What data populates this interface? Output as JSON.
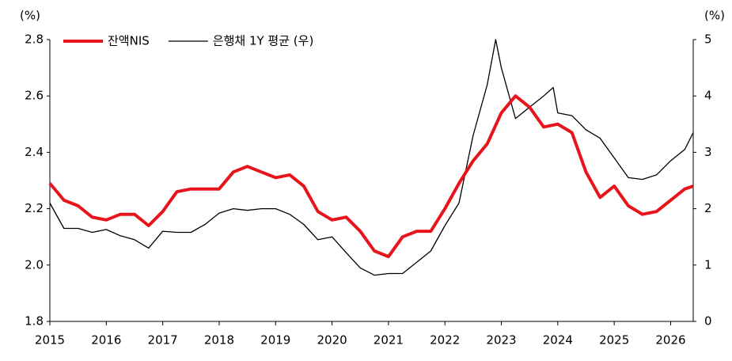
{
  "chart_data": {
    "type": "line",
    "ylabel": "(%)",
    "y2label": "(%)",
    "xlim": [
      2015,
      2026.4
    ],
    "xticks": [
      2015,
      2016,
      2017,
      2018,
      2019,
      2020,
      2021,
      2022,
      2023,
      2024,
      2025,
      2026
    ],
    "ylim": [
      1.8,
      2.8
    ],
    "yticks": [
      1.8,
      {
        "value": 2,
        "label": "2.0"
      },
      2.2,
      2.4,
      2.6,
      2.8
    ],
    "y2lim": [
      0,
      5
    ],
    "y2ticks": [
      0,
      1,
      2,
      3,
      4,
      5
    ],
    "legend": "upper left",
    "grid": false,
    "series": [
      {
        "name": "잔액NIS",
        "color": "#e8141b",
        "width": 4,
        "x": [
          2015,
          2015.25,
          2015.5,
          2015.75,
          2016,
          2016.25,
          2016.5,
          2016.75,
          2017,
          2017.25,
          2017.5,
          2017.75,
          2018,
          2018.25,
          2018.5,
          2018.75,
          2019,
          2019.25,
          2019.5,
          2019.75,
          2020,
          2020.25,
          2020.5,
          2020.75,
          2021,
          2021.25,
          2021.5,
          2021.75,
          2022,
          2022.25,
          2022.5,
          2022.75,
          2023,
          2023.25,
          2023.5,
          2023.75,
          2024,
          2024.25,
          2024.5,
          2024.75,
          2025,
          2025.25,
          2025.5,
          2025.75,
          2026,
          2026.25,
          2026.4
        ],
        "values": [
          2.29,
          2.23,
          2.21,
          2.17,
          2.16,
          2.18,
          2.18,
          2.14,
          2.19,
          2.26,
          2.27,
          2.27,
          2.27,
          2.33,
          2.35,
          2.33,
          2.31,
          2.32,
          2.28,
          2.19,
          2.16,
          2.17,
          2.12,
          2.05,
          2.03,
          2.1,
          2.12,
          2.12,
          2.2,
          2.29,
          2.37,
          2.43,
          2.54,
          2.6,
          2.56,
          2.49,
          2.5,
          2.47,
          2.33,
          2.24,
          2.28,
          2.21,
          2.18,
          2.19,
          2.23,
          2.27,
          2.28
        ]
      },
      {
        "name": "은행채 1Y 평균 (우)",
        "color": "#000000",
        "width": 1.3,
        "axis": "y2",
        "x": [
          2015,
          2015.25,
          2015.5,
          2015.75,
          2016,
          2016.25,
          2016.5,
          2016.75,
          2017,
          2017.25,
          2017.5,
          2017.75,
          2018,
          2018.25,
          2018.5,
          2018.75,
          2019,
          2019.25,
          2019.5,
          2019.75,
          2020,
          2020.25,
          2020.5,
          2020.75,
          2021,
          2021.25,
          2021.5,
          2021.75,
          2022,
          2022.25,
          2022.5,
          2022.75,
          2022.9,
          2023,
          2023.25,
          2023.5,
          2023.75,
          2023.92,
          2024,
          2024.25,
          2024.5,
          2024.75,
          2025,
          2025.25,
          2025.5,
          2025.75,
          2026,
          2026.25,
          2026.4
        ],
        "values": [
          2.1,
          1.65,
          1.65,
          1.58,
          1.63,
          1.52,
          1.45,
          1.3,
          1.6,
          1.58,
          1.58,
          1.72,
          1.92,
          2.0,
          1.97,
          2.0,
          2.0,
          1.9,
          1.72,
          1.45,
          1.5,
          1.22,
          0.95,
          0.82,
          0.85,
          0.85,
          1.05,
          1.25,
          1.7,
          2.1,
          3.3,
          4.2,
          5.0,
          4.5,
          3.6,
          3.8,
          4.0,
          4.15,
          3.7,
          3.65,
          3.4,
          3.25,
          2.9,
          2.55,
          2.52,
          2.6,
          2.85,
          3.05,
          3.35
        ]
      }
    ]
  }
}
